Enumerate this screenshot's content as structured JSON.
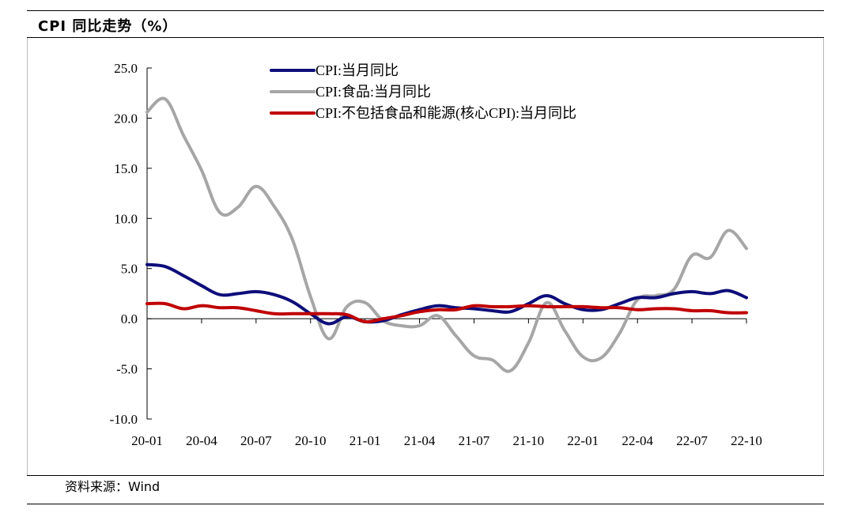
{
  "page": {
    "title": "CPI 同比走势（%）",
    "source": "资料来源：Wind"
  },
  "chart_data": {
    "type": "line",
    "xlabel": "",
    "ylabel": "",
    "ylim": [
      -10,
      25
    ],
    "yticks": [
      "25.0",
      "20.0",
      "15.0",
      "10.0",
      "5.0",
      "0.0",
      "-5.0",
      "-10.0"
    ],
    "xtick_labels": [
      "20-01",
      "20-04",
      "20-07",
      "20-10",
      "21-01",
      "21-04",
      "21-07",
      "21-10",
      "22-01",
      "22-04",
      "22-07",
      "22-10"
    ],
    "legend_placement": "top-center",
    "grid": false,
    "series": [
      {
        "name": "CPI:当月同比",
        "color": "#0d0d7a",
        "values": [
          5.4,
          5.2,
          4.3,
          3.3,
          2.4,
          2.5,
          2.7,
          2.4,
          1.7,
          0.5,
          -0.5,
          0.2,
          -0.3,
          -0.2,
          0.4,
          0.9,
          1.3,
          1.1,
          1.0,
          0.8,
          0.7,
          1.5,
          2.3,
          1.5,
          0.9,
          0.9,
          1.5,
          2.1,
          2.1,
          2.5,
          2.7,
          2.5,
          2.8,
          2.1
        ]
      },
      {
        "name": "CPI:食品:当月同比",
        "color": "#a6a6a6",
        "values": [
          20.6,
          21.9,
          18.3,
          14.8,
          10.6,
          11.1,
          13.2,
          11.2,
          7.9,
          2.2,
          -2.0,
          1.2,
          1.6,
          -0.2,
          -0.7,
          -0.7,
          0.3,
          -1.7,
          -3.7,
          -4.1,
          -5.2,
          -2.4,
          1.6,
          -1.2,
          -3.8,
          -3.9,
          -1.5,
          1.9,
          2.3,
          2.9,
          6.3,
          6.1,
          8.8,
          7.0
        ]
      },
      {
        "name": "CPI:不包括食品和能源(核心CPI):当月同比",
        "color": "#c00000",
        "values": [
          1.5,
          1.5,
          1.0,
          1.3,
          1.1,
          1.1,
          0.8,
          0.5,
          0.5,
          0.5,
          0.5,
          0.4,
          -0.3,
          0.0,
          0.3,
          0.7,
          0.9,
          0.9,
          1.3,
          1.2,
          1.2,
          1.3,
          1.2,
          1.2,
          1.2,
          1.1,
          1.1,
          0.9,
          1.0,
          1.0,
          0.8,
          0.8,
          0.6,
          0.6
        ]
      }
    ]
  }
}
